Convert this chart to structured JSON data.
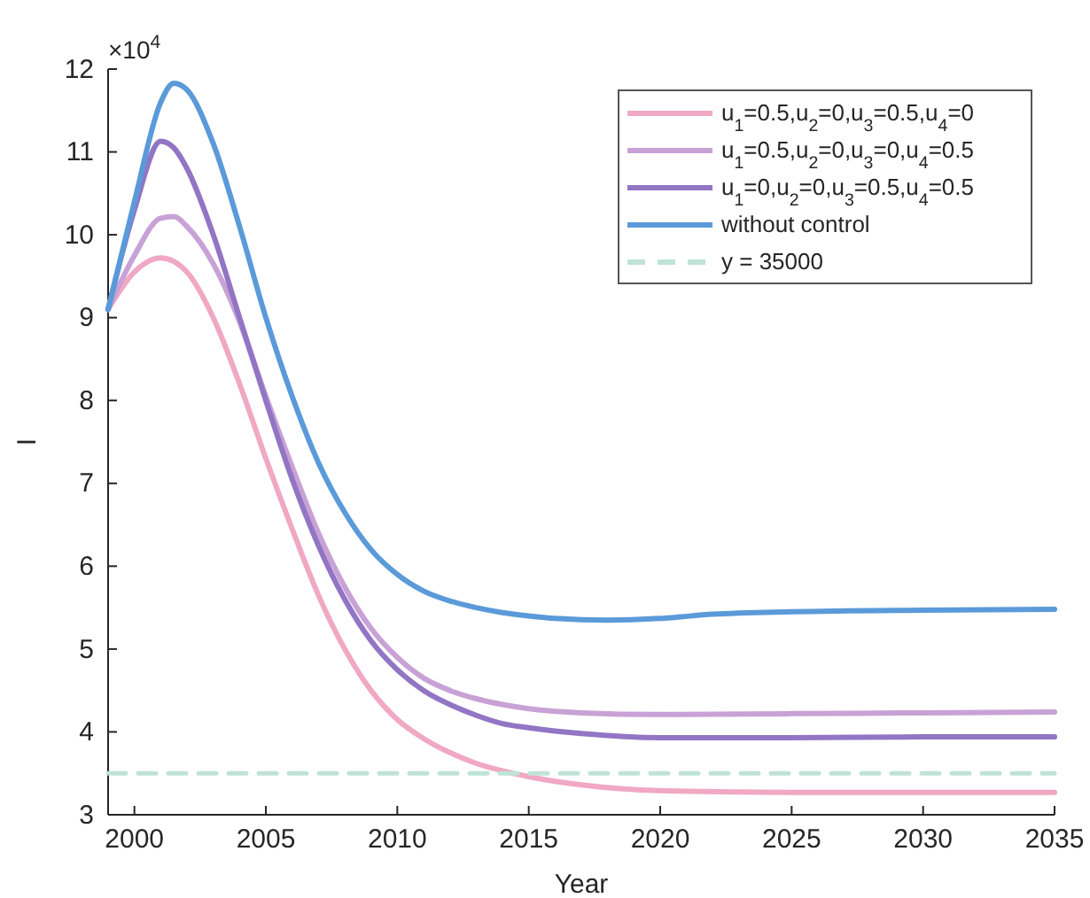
{
  "chart_data": {
    "type": "line",
    "xlabel": "Year",
    "ylabel": "I",
    "annotations": [
      "×10$^{4}$"
    ],
    "xlim": [
      1999,
      2035
    ],
    "xticks": [
      2000,
      2005,
      2010,
      2015,
      2020,
      2025,
      2030,
      2035
    ],
    "ylim": [
      3,
      12
    ],
    "yticks": [
      3,
      4,
      5,
      6,
      7,
      8,
      9,
      10,
      11,
      12
    ],
    "legend": "top right",
    "line_style": "solid",
    "series": [
      {
        "name": "u$_{1}$=0.5,u$_{2}$=0,u$_{3}$=0.5,u$_{4}$=0",
        "color": "#f0a8c4",
        "x": [
          1999,
          2000,
          2001,
          2002,
          2003,
          2004,
          2005,
          2006,
          2007,
          2008,
          2009,
          2010,
          2011,
          2012,
          2013,
          2014,
          2015,
          2017,
          2020,
          2025,
          2030,
          2035
        ],
        "values": [
          9.1,
          9.55,
          9.72,
          9.55,
          9.0,
          8.2,
          7.3,
          6.45,
          5.65,
          5.0,
          4.5,
          4.15,
          3.92,
          3.75,
          3.62,
          3.53,
          3.46,
          3.36,
          3.29,
          3.27,
          3.27,
          3.27
        ]
      },
      {
        "name": "u$_{1}$=0.5,u$_{2}$=0,u$_{3}$=0,u$_{4}$=0.5",
        "color": "#c8a2d6",
        "x": [
          1999,
          2000,
          2001,
          2001.5,
          2002,
          2003,
          2004,
          2005,
          2006,
          2007,
          2008,
          2009,
          2010,
          2011,
          2012,
          2013,
          2014,
          2015,
          2017,
          2020,
          2025,
          2030,
          2035
        ],
        "values": [
          9.1,
          9.75,
          10.2,
          10.22,
          10.1,
          9.65,
          8.95,
          8.05,
          7.2,
          6.4,
          5.75,
          5.25,
          4.9,
          4.65,
          4.5,
          4.4,
          4.33,
          4.28,
          4.23,
          4.21,
          4.22,
          4.23,
          4.24
        ]
      },
      {
        "name": "u$_{1}$=0,u$_{2}$=0,u$_{3}$=0.5,u$_{4}$=0.5",
        "color": "#9275c4",
        "x": [
          1999,
          2000,
          2001,
          2001.5,
          2002,
          2003,
          2004,
          2005,
          2006,
          2007,
          2008,
          2009,
          2010,
          2011,
          2012,
          2013,
          2014,
          2015,
          2017,
          2020,
          2025,
          2030,
          2035
        ],
        "values": [
          9.1,
          10.3,
          11.13,
          11.05,
          10.8,
          10.0,
          9.0,
          8.0,
          7.05,
          6.25,
          5.6,
          5.1,
          4.75,
          4.5,
          4.33,
          4.2,
          4.1,
          4.05,
          3.98,
          3.93,
          3.93,
          3.94,
          3.94
        ]
      },
      {
        "name": "y = 35000",
        "color": "#bfe3d6",
        "line_style": "dashed",
        "x": [
          1999,
          2035
        ],
        "values": [
          3.5,
          3.5
        ]
      },
      {
        "name": "without control",
        "color": "#5b9ad9",
        "x": [
          1999,
          2000,
          2001,
          2001.5,
          2002,
          2003,
          2004,
          2005,
          2006,
          2007,
          2008,
          2009,
          2010,
          2011,
          2012,
          2013,
          2014,
          2015,
          2016,
          2018,
          2020,
          2022,
          2025,
          2030,
          2035
        ],
        "values": [
          9.1,
          10.4,
          11.6,
          11.83,
          11.75,
          11.1,
          10.1,
          9.0,
          8.05,
          7.25,
          6.65,
          6.2,
          5.9,
          5.7,
          5.58,
          5.5,
          5.44,
          5.4,
          5.37,
          5.35,
          5.37,
          5.42,
          5.45,
          5.47,
          5.48
        ]
      }
    ]
  }
}
